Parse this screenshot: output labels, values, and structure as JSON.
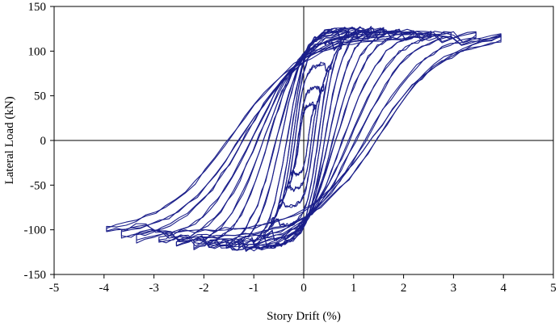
{
  "chart_data": {
    "type": "line",
    "title": "",
    "xlabel": "Story Drift (%)",
    "ylabel": "Lateral Load (kN)",
    "xlim": [
      -5,
      5
    ],
    "ylim": [
      -150,
      150
    ],
    "x_ticks": [
      -5,
      -4,
      -3,
      -2,
      -1,
      0,
      1,
      2,
      3,
      4,
      5
    ],
    "y_ticks": [
      -150,
      -100,
      -50,
      0,
      50,
      100,
      150
    ],
    "grid": false,
    "legend": "none",
    "zero_lines": true,
    "series_color": "#1b1f8a",
    "series": [
      {
        "description": "hysteresis loops",
        "loops": [
          {
            "dmax": 0.25,
            "pmax": 40,
            "dmin": -0.25,
            "pmin": -38
          },
          {
            "dmax": 0.4,
            "pmax": 60,
            "dmin": -0.35,
            "pmin": -55
          },
          {
            "dmax": 0.55,
            "pmax": 85,
            "dmin": -0.5,
            "pmin": -75
          },
          {
            "dmax": 0.75,
            "pmax": 110,
            "dmin": -0.65,
            "pmin": -95
          },
          {
            "dmax": 0.9,
            "pmax": 122,
            "dmin": -0.8,
            "pmin": -110
          },
          {
            "dmax": 1.1,
            "pmax": 125,
            "dmin": -1.0,
            "pmin": -118
          },
          {
            "dmax": 1.35,
            "pmax": 126,
            "dmin": -1.3,
            "pmin": -120
          },
          {
            "dmax": 1.6,
            "pmax": 125,
            "dmin": -1.55,
            "pmin": -121
          },
          {
            "dmax": 1.85,
            "pmax": 124,
            "dmin": -1.9,
            "pmin": -121
          },
          {
            "dmax": 2.2,
            "pmax": 123,
            "dmin": -2.2,
            "pmin": -120
          },
          {
            "dmax": 2.55,
            "pmax": 122,
            "dmin": -2.55,
            "pmin": -118
          },
          {
            "dmax": 2.95,
            "pmax": 122,
            "dmin": -2.9,
            "pmin": -115
          },
          {
            "dmax": 3.45,
            "pmax": 121,
            "dmin": -3.35,
            "pmin": -112
          },
          {
            "dmax": 3.95,
            "pmax": 120,
            "dmin": -3.65,
            "pmin": -108
          },
          {
            "dmax": 3.95,
            "pmax": 116,
            "dmin": -3.95,
            "pmin": -102
          }
        ]
      }
    ]
  }
}
